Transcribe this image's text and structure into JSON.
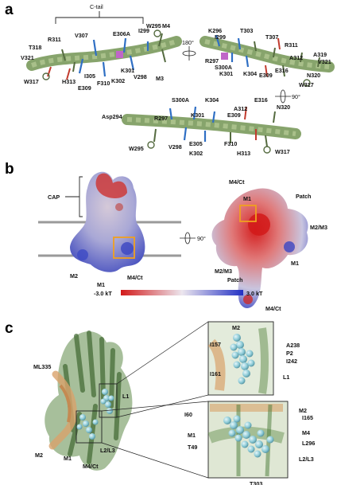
{
  "panel_a": {
    "letter": "a",
    "bracket_label": "C-tail",
    "rotate_label_180": "180°",
    "rotate_label_90": "90°",
    "view1_labels": [
      "V307",
      "E306A",
      "I299",
      "W295",
      "M4",
      "R311",
      "T318",
      "V321",
      "W317",
      "H313",
      "E309",
      "F310",
      "I305",
      "K302",
      "V298",
      "K301",
      "M3"
    ],
    "view2_labels": [
      "K296",
      "I299",
      "T303",
      "T307",
      "R311",
      "A312",
      "A319",
      "V321",
      "R297",
      "S300A",
      "K301",
      "K304",
      "E309",
      "E316",
      "W317",
      "N320"
    ],
    "view3_labels": [
      "S300A",
      "K304",
      "E316",
      "N320",
      "A312",
      "Asp294",
      "R297",
      "K301",
      "E309",
      "W295",
      "V298",
      "E305",
      "F310",
      "W317",
      "K302",
      "H313"
    ]
  },
  "panel_b": {
    "letter": "b",
    "cap_label": "CAP",
    "rotate_label": "90°",
    "left_labels": [
      "M2",
      "M1",
      "M4/Ct"
    ],
    "right_labels": [
      "M4/Ct",
      "Patch",
      "M1",
      "M2/M3",
      "M2/M3",
      "Patch",
      "M1",
      "M4/Ct"
    ],
    "scale_min": "-3.0 kT",
    "scale_max": "3.0 kT",
    "colors": {
      "negative": "#d21a1a",
      "neutral": "#e9e4ee",
      "positive": "#2230c4",
      "highlight": "#f0a020"
    }
  },
  "panel_c": {
    "letter": "c",
    "main_labels": [
      "ML335",
      "L1",
      "M2",
      "M1",
      "L2/L3",
      "M4/Ct"
    ],
    "inset_top_labels": [
      "M2",
      "I157",
      "A238",
      "P2",
      "I242",
      "I161",
      "L1"
    ],
    "inset_bottom_labels": [
      "I60",
      "M2",
      "I165",
      "M1",
      "M4",
      "T49",
      "L296",
      "L2/L3",
      "T303"
    ],
    "colors": {
      "green": "#4f7a3c",
      "orange": "#d9a36b",
      "sphere": "#8ccad6"
    }
  }
}
